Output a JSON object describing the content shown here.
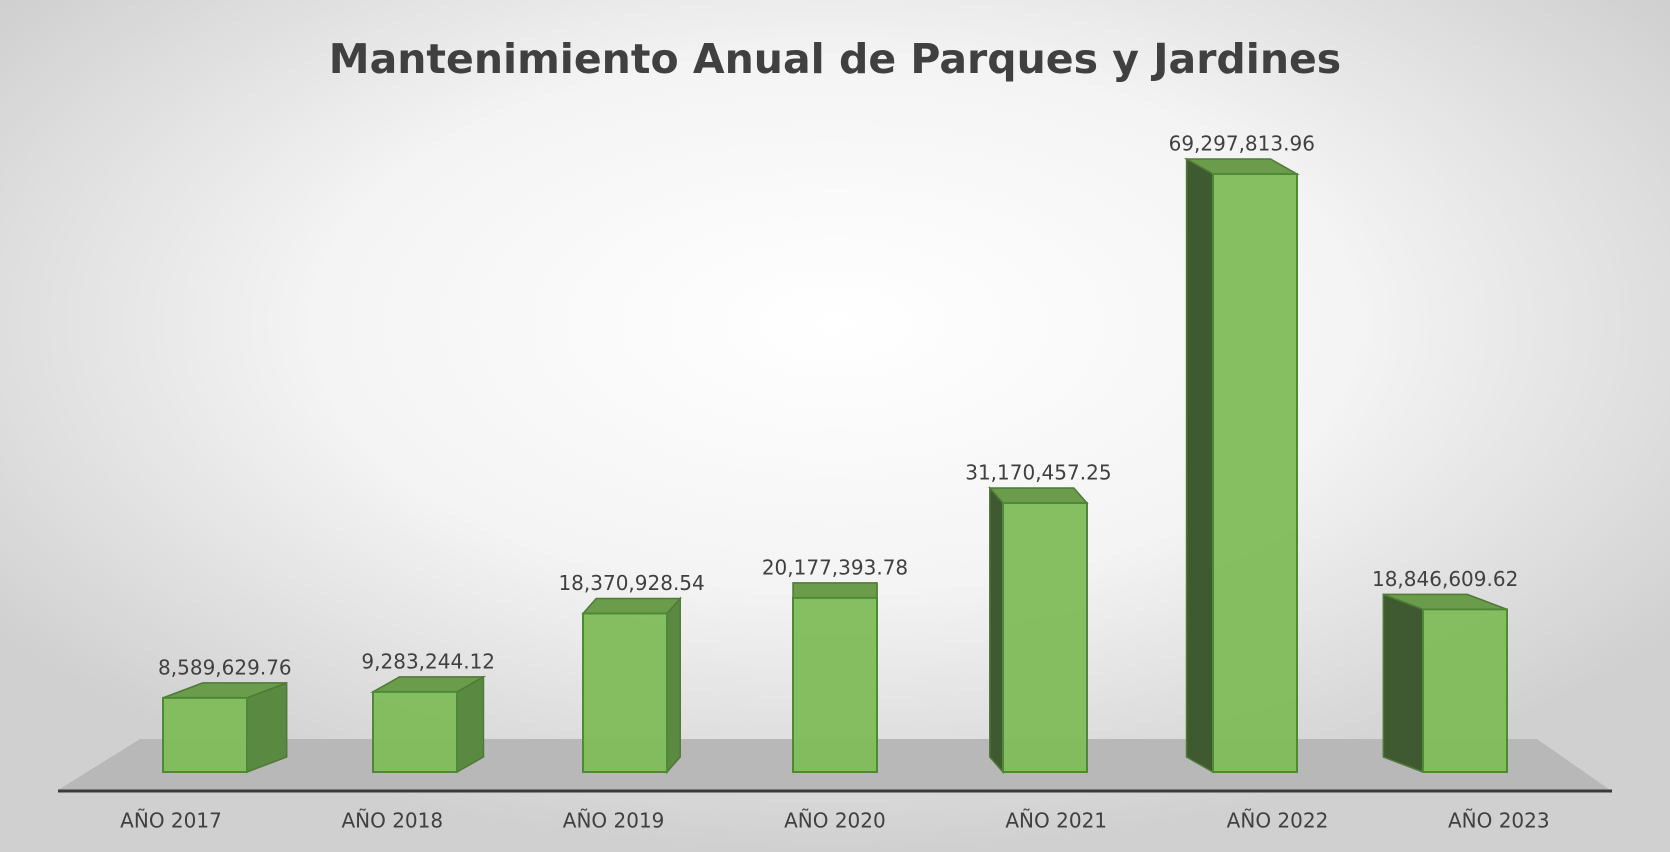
{
  "chart_data": {
    "type": "bar3d",
    "title": "Mantenimiento Anual de Parques y Jardines",
    "categories": [
      "AÑO 2017",
      "AÑO 2018",
      "AÑO 2019",
      "AÑO 2020",
      "AÑO 2021",
      "AÑO 2022",
      "AÑO 2023"
    ],
    "values": [
      8589629.76,
      9283244.12,
      18370928.54,
      20177393.78,
      31170457.25,
      69297813.96,
      18846609.62
    ],
    "value_labels": [
      "8,589,629.76",
      "9,283,244.12",
      "18,370,928.54",
      "20,177,393.78",
      "31,170,457.25",
      "69,297,813.96",
      "18,846,609.62"
    ],
    "color": "#7fba5a"
  }
}
